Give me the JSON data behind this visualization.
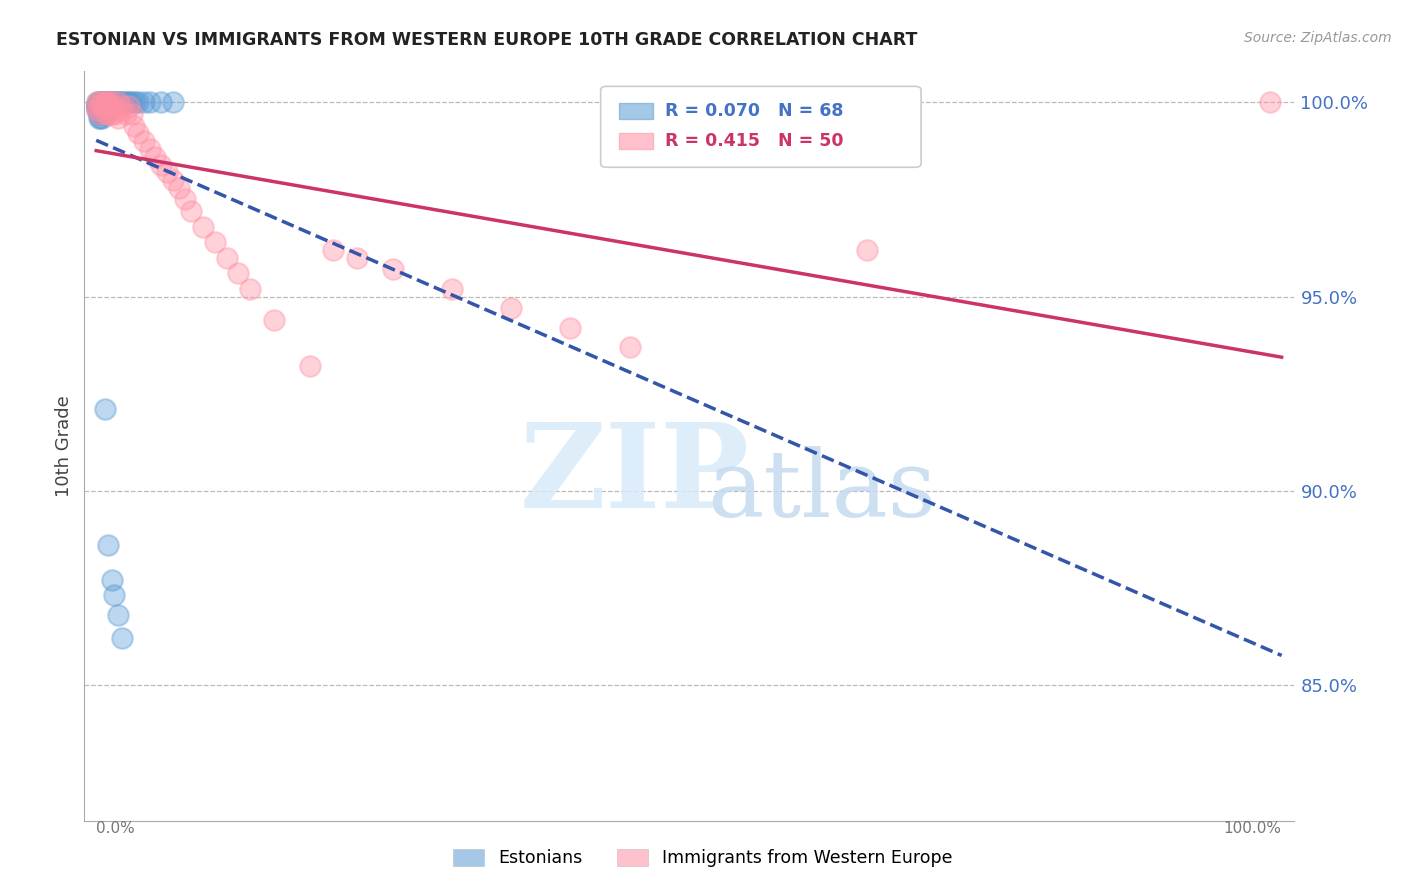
{
  "title": "ESTONIAN VS IMMIGRANTS FROM WESTERN EUROPE 10TH GRADE CORRELATION CHART",
  "source": "Source: ZipAtlas.com",
  "ylabel": "10th Grade",
  "legend_label1": "Estonians",
  "legend_label2": "Immigrants from Western Europe",
  "r1": 0.07,
  "n1": 68,
  "r2": 0.415,
  "n2": 50,
  "color_blue": "#5B9BD5",
  "color_pink": "#FF8FA3",
  "color_trendline_blue": "#3355AA",
  "color_trendline_pink": "#CC3366",
  "color_grid": "#BBBBBB",
  "color_ytick": "#4472C4",
  "ytick_labels": [
    "100.0%",
    "95.0%",
    "90.0%",
    "85.0%"
  ],
  "ytick_values": [
    1.0,
    0.95,
    0.9,
    0.85
  ],
  "xlim": [
    -0.01,
    1.01
  ],
  "ylim": [
    0.815,
    1.008
  ],
  "blue_x": [
    0.001,
    0.001,
    0.001,
    0.001,
    0.001,
    0.001,
    0.001,
    0.002,
    0.002,
    0.002,
    0.002,
    0.002,
    0.002,
    0.002,
    0.003,
    0.003,
    0.003,
    0.003,
    0.003,
    0.003,
    0.004,
    0.004,
    0.004,
    0.004,
    0.005,
    0.005,
    0.005,
    0.005,
    0.005,
    0.006,
    0.006,
    0.006,
    0.007,
    0.007,
    0.007,
    0.008,
    0.008,
    0.009,
    0.009,
    0.01,
    0.01,
    0.011,
    0.012,
    0.012,
    0.013,
    0.015,
    0.016,
    0.017,
    0.018,
    0.02,
    0.021,
    0.022,
    0.025,
    0.027,
    0.028,
    0.03,
    0.033,
    0.035,
    0.04,
    0.045,
    0.055,
    0.065,
    0.007,
    0.01,
    0.013,
    0.015,
    0.018,
    0.022
  ],
  "blue_y": [
    1.0,
    0.999,
    0.999,
    0.999,
    0.999,
    0.999,
    0.998,
    1.0,
    0.999,
    0.999,
    0.999,
    0.998,
    0.997,
    0.996,
    1.0,
    0.999,
    0.999,
    0.998,
    0.997,
    0.996,
    1.0,
    0.999,
    0.998,
    0.997,
    1.0,
    0.999,
    0.998,
    0.997,
    0.996,
    1.0,
    0.999,
    0.997,
    1.0,
    0.999,
    0.997,
    1.0,
    0.999,
    1.0,
    0.998,
    1.0,
    0.999,
    1.0,
    1.0,
    0.999,
    1.0,
    1.0,
    1.0,
    1.0,
    1.0,
    1.0,
    1.0,
    1.0,
    1.0,
    1.0,
    1.0,
    1.0,
    1.0,
    1.0,
    1.0,
    1.0,
    1.0,
    1.0,
    0.921,
    0.886,
    0.877,
    0.873,
    0.868,
    0.862
  ],
  "pink_x": [
    0.001,
    0.001,
    0.001,
    0.003,
    0.003,
    0.005,
    0.006,
    0.008,
    0.008,
    0.009,
    0.01,
    0.01,
    0.012,
    0.013,
    0.013,
    0.015,
    0.018,
    0.018,
    0.02,
    0.022,
    0.025,
    0.028,
    0.03,
    0.032,
    0.035,
    0.04,
    0.045,
    0.05,
    0.055,
    0.06,
    0.065,
    0.07,
    0.075,
    0.08,
    0.09,
    0.1,
    0.11,
    0.12,
    0.13,
    0.15,
    0.18,
    0.2,
    0.22,
    0.25,
    0.3,
    0.35,
    0.4,
    0.45,
    0.65,
    0.99
  ],
  "pink_y": [
    1.0,
    0.999,
    0.998,
    1.0,
    0.997,
    1.0,
    0.999,
    1.0,
    0.997,
    1.0,
    1.0,
    0.997,
    0.999,
    1.0,
    0.997,
    0.997,
    1.0,
    0.996,
    0.998,
    0.999,
    0.997,
    0.999,
    0.997,
    0.994,
    0.992,
    0.99,
    0.988,
    0.986,
    0.984,
    0.982,
    0.98,
    0.978,
    0.975,
    0.972,
    0.968,
    0.964,
    0.96,
    0.956,
    0.952,
    0.944,
    0.932,
    0.962,
    0.96,
    0.957,
    0.952,
    0.947,
    0.942,
    0.937,
    0.962,
    1.0
  ]
}
